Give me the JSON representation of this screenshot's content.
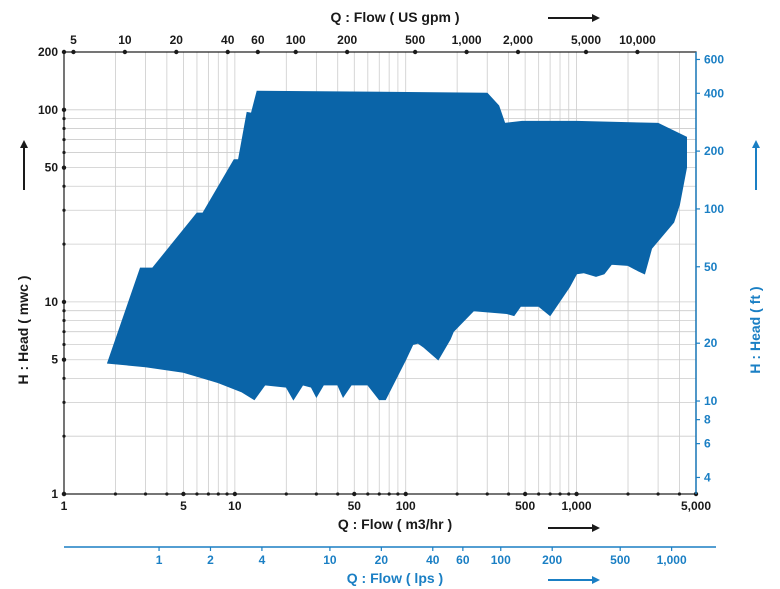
{
  "chart_data": {
    "type": "area",
    "title": "",
    "bottom_axis": {
      "label": "Q : Flow ( m3/hr )",
      "scale": "log",
      "range": [
        1,
        5000
      ],
      "ticks": [
        "1",
        "5",
        "10",
        "50",
        "100",
        "500",
        "1,000",
        "5,000"
      ],
      "tick_values": [
        1,
        5,
        10,
        50,
        100,
        500,
        1000,
        5000
      ]
    },
    "top_axis": {
      "label": "Q : Flow ( US gpm )",
      "scale": "log",
      "ticks": [
        "5",
        "10",
        "20",
        "40",
        "60",
        "100",
        "200",
        "500",
        "1,000",
        "2,000",
        "5,000",
        "10,000"
      ],
      "tick_values": [
        5,
        10,
        20,
        40,
        60,
        100,
        200,
        500,
        1000,
        2000,
        5000,
        10000
      ]
    },
    "lps_axis": {
      "label": "Q : Flow ( lps )",
      "scale": "log",
      "ticks": [
        "1",
        "2",
        "4",
        "10",
        "20",
        "40",
        "60",
        "100",
        "200",
        "500",
        "1,000"
      ],
      "tick_values": [
        1,
        2,
        4,
        10,
        20,
        40,
        60,
        100,
        200,
        500,
        1000
      ]
    },
    "left_axis": {
      "label": "H : Head ( mwc )",
      "scale": "log",
      "range": [
        1,
        200
      ],
      "ticks": [
        "1",
        "5",
        "10",
        "50",
        "100",
        "200"
      ],
      "tick_values": [
        1,
        5,
        10,
        50,
        100,
        200
      ]
    },
    "right_axis": {
      "label": "H : Head ( ft )",
      "scale": "log",
      "ticks": [
        "4",
        "6",
        "8",
        "10",
        "20",
        "50",
        "100",
        "200",
        "400",
        "600"
      ],
      "tick_values": [
        4,
        6,
        8,
        10,
        20,
        50,
        100,
        200,
        400,
        600
      ]
    },
    "grid": true,
    "series": [
      {
        "fill_color": "#0a64a8",
        "points": [
          [
            1.8,
            4.8
          ],
          [
            3.0,
            4.6
          ],
          [
            5.0,
            4.3
          ],
          [
            8.0,
            3.8
          ],
          [
            11,
            3.4
          ],
          [
            13,
            3.1
          ],
          [
            15,
            3.7
          ],
          [
            20,
            3.6
          ],
          [
            22,
            3.1
          ],
          [
            25,
            3.7
          ],
          [
            28,
            3.6
          ],
          [
            30,
            3.2
          ],
          [
            33,
            3.7
          ],
          [
            40,
            3.7
          ],
          [
            43,
            3.2
          ],
          [
            48,
            3.7
          ],
          [
            60,
            3.7
          ],
          [
            70,
            3.1
          ],
          [
            76,
            3.1
          ],
          [
            100,
            5.0
          ],
          [
            110,
            6.0
          ],
          [
            118,
            6.1
          ],
          [
            128,
            5.8
          ],
          [
            155,
            5.0
          ],
          [
            182,
            6.4
          ],
          [
            190,
            7.0
          ],
          [
            250,
            9.0
          ],
          [
            390,
            8.7
          ],
          [
            430,
            8.5
          ],
          [
            470,
            9.5
          ],
          [
            600,
            9.5
          ],
          [
            700,
            8.5
          ],
          [
            910,
            12.0
          ],
          [
            1000,
            14.0
          ],
          [
            1100,
            14.2
          ],
          [
            1300,
            13.6
          ],
          [
            1450,
            14.0
          ],
          [
            1600,
            15.7
          ],
          [
            2000,
            15.5
          ],
          [
            2300,
            14.5
          ],
          [
            2500,
            14.0
          ],
          [
            2750,
            19.0
          ],
          [
            3700,
            26.0
          ],
          [
            4000,
            32.0
          ],
          [
            4400,
            50.0
          ],
          [
            4400,
            72.0
          ],
          [
            3000,
            85.0
          ],
          [
            1000,
            87.0
          ],
          [
            480,
            87.0
          ],
          [
            380,
            85.0
          ],
          [
            350,
            105.0
          ],
          [
            300,
            122.0
          ],
          [
            13.5,
            125.0
          ],
          [
            12.5,
            96.0
          ],
          [
            11.8,
            97.0
          ],
          [
            10.5,
            55.0
          ],
          [
            9.9,
            55.0
          ],
          [
            6.5,
            29.0
          ],
          [
            6.0,
            29.0
          ],
          [
            3.3,
            15.0
          ],
          [
            2.8,
            15.0
          ],
          [
            1.8,
            4.8
          ]
        ]
      }
    ]
  }
}
